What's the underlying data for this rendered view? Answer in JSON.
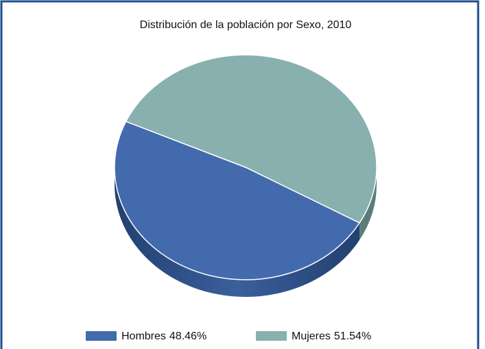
{
  "chart_data": {
    "type": "pie",
    "title": "Distribución de la población por Sexo, 2010",
    "categories": [
      "Hombres",
      "Mujeres"
    ],
    "values": [
      48.46,
      51.54
    ],
    "value_labels": [
      "48.46%",
      "51.54%"
    ],
    "colors": [
      "#426aad",
      "#88b0ae"
    ],
    "legend": "bottom"
  }
}
